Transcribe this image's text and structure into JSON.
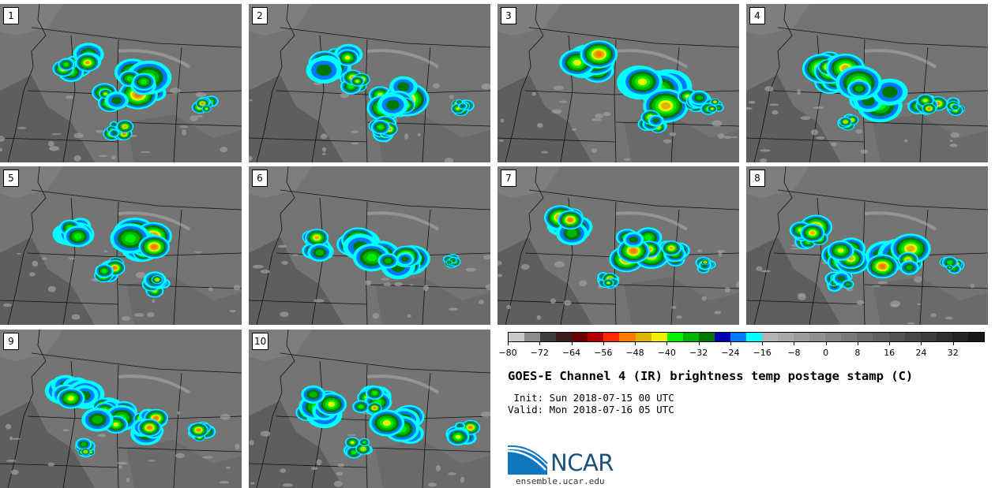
{
  "panels": [
    {
      "label": "1"
    },
    {
      "label": "2"
    },
    {
      "label": "3"
    },
    {
      "label": "4"
    },
    {
      "label": "5"
    },
    {
      "label": "6"
    },
    {
      "label": "7"
    },
    {
      "label": "8"
    },
    {
      "label": "9"
    },
    {
      "label": "10"
    }
  ],
  "colorbar": {
    "colors": [
      "#c8c8c8",
      "#8c8c8c",
      "#3c3c3c",
      "#3c1e1e",
      "#6e0000",
      "#b40000",
      "#ff2800",
      "#ff7800",
      "#dcb400",
      "#f0f000",
      "#00f000",
      "#00b400",
      "#007800",
      "#0000b4",
      "#0078ff",
      "#00ffff",
      "#b4b4b4",
      "#a8a8a8",
      "#9c9c9c",
      "#909090",
      "#848484",
      "#787878",
      "#6c6c6c",
      "#606060",
      "#545454",
      "#484848",
      "#3c3c3c",
      "#303030",
      "#242424",
      "#181818"
    ],
    "tick_labels": [
      "−80",
      "−72",
      "−64",
      "−56",
      "−48",
      "−40",
      "−32",
      "−24",
      "−16",
      "−8",
      "0",
      "8",
      "16",
      "24",
      "32"
    ]
  },
  "title": "GOES-E Channel 4 (IR) brightness temp postage stamp (C)",
  "init": " Init: Sun 2018-07-15 00 UTC",
  "valid": "Valid: Mon 2018-07-16 05 UTC",
  "logo": {
    "text": "NCAR",
    "colors": {
      "blue": "#0f76bf",
      "dark": "#1f4f7c"
    }
  },
  "site": "ensemble.ucar.edu"
}
